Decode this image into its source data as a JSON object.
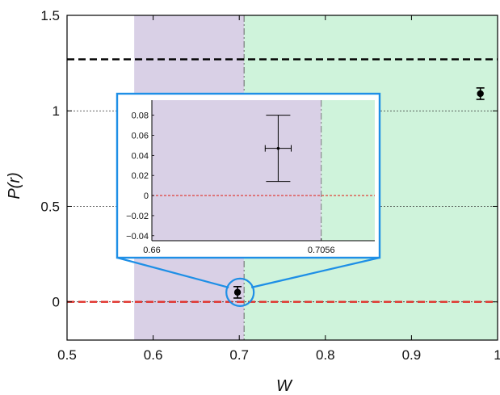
{
  "chart_data": [
    {
      "id": "main",
      "type": "scatter",
      "xlabel": "W",
      "ylabel": "P(r)",
      "xlim": [
        0.5,
        1.0
      ],
      "ylim": [
        -0.2,
        1.5
      ],
      "x_ticks": [
        0.5,
        0.6,
        0.7,
        0.8,
        0.9,
        1.0
      ],
      "x_tick_labels": [
        "0.5",
        "0.6",
        "0.7",
        "0.8",
        "0.9",
        "1"
      ],
      "y_ticks": [
        0,
        0.5,
        1.0,
        1.5
      ],
      "y_tick_labels": [
        "0",
        "0.5",
        "1",
        "1.5"
      ],
      "grid": "horizontal dotted",
      "shaded_regions": [
        {
          "x_start": 0.578,
          "x_end": 0.7056,
          "color": "#d9d0e6"
        },
        {
          "x_start": 0.7056,
          "x_end": 1.0,
          "color": "#cff3db"
        }
      ],
      "vertical_lines": [
        {
          "x": 0.7056,
          "style": "dash-dot",
          "color": "#666666"
        }
      ],
      "horizontal_lines": [
        {
          "y": 1.27,
          "style": "dashed",
          "color": "#000000"
        },
        {
          "y": 0.0,
          "style": "dashed",
          "color": "#e0302a"
        }
      ],
      "series": [
        {
          "points": [
            {
              "x": 0.698,
              "y": 0.05,
              "yerr": 0.03
            },
            {
              "x": 0.98,
              "y": 1.09,
              "yerr": 0.03
            }
          ]
        }
      ],
      "annotations": [
        {
          "type": "zoom-circle",
          "x": 0.7,
          "y": 0.05
        }
      ]
    },
    {
      "id": "inset",
      "type": "scatter",
      "xlim": [
        0.66,
        0.72
      ],
      "ylim": [
        -0.045,
        0.095
      ],
      "x_ticks": [
        0.66,
        0.7056
      ],
      "x_tick_labels": [
        "0.66",
        "0.7056"
      ],
      "y_ticks": [
        -0.04,
        -0.02,
        0,
        0.02,
        0.04,
        0.06,
        0.08
      ],
      "y_tick_labels": [
        "−0.04",
        "−0.02",
        "0",
        "0.02",
        "0.04",
        "0.06",
        "0.08"
      ],
      "shaded_regions": [
        {
          "x_start": 0.66,
          "x_end": 0.7056,
          "color": "#d9d0e6"
        },
        {
          "x_start": 0.7056,
          "x_end": 0.72,
          "color": "#cff3db"
        }
      ],
      "vertical_lines": [
        {
          "x": 0.7056,
          "style": "dash-dot",
          "color": "#666666"
        }
      ],
      "horizontal_lines": [
        {
          "y": 0.0,
          "style": "dashed",
          "color": "#e0302a"
        }
      ],
      "series": [
        {
          "points": [
            {
              "x": 0.694,
              "y": 0.047,
              "yerr": 0.033,
              "xerr": 0.0035
            }
          ]
        }
      ]
    }
  ]
}
